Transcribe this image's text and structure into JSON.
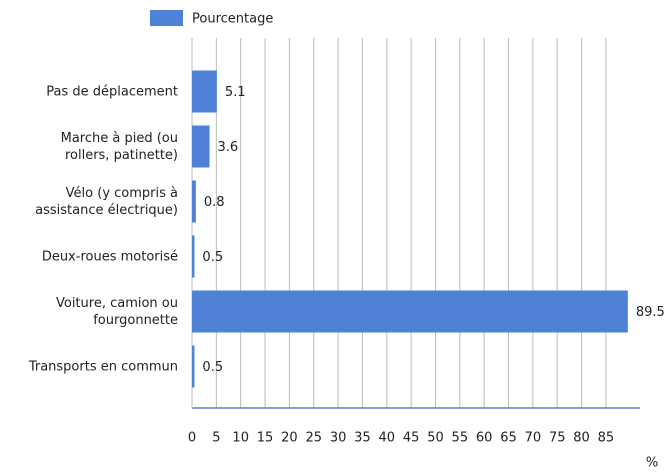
{
  "chart_data": {
    "type": "barh",
    "legend": "Pourcentage",
    "x_label": "%",
    "categories": [
      "Pas de déplacement",
      "Marche à pied (ou\nrollers, patinette)",
      "Vélo (y compris à\nassistance électrique)",
      "Deux-roues motorisé",
      "Voiture, camion ou\nfourgonnette",
      "Transports en commun"
    ],
    "series": [
      {
        "name": "Pourcentage",
        "color": "#4f82d6",
        "values": [
          5.1,
          3.6,
          0.8,
          0.5,
          89.5,
          0.5
        ]
      }
    ],
    "xlim": [
      0,
      92
    ],
    "xticks": [
      0,
      5,
      10,
      15,
      20,
      25,
      30,
      35,
      40,
      45,
      50,
      55,
      60,
      65,
      70,
      75,
      80,
      85
    ],
    "grid": true
  }
}
